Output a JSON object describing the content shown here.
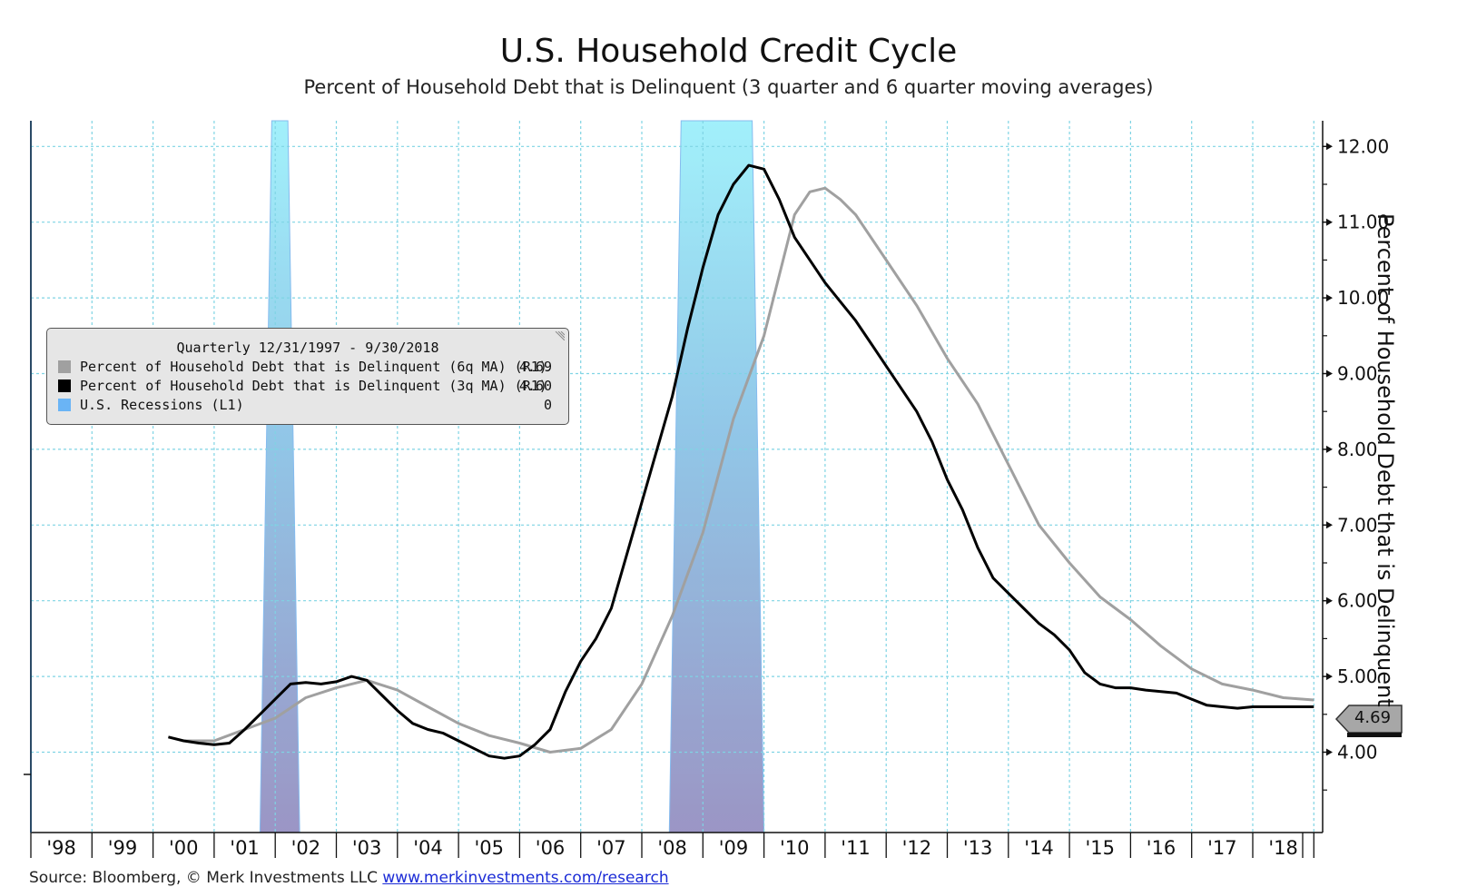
{
  "chart_data": {
    "type": "line",
    "title": "U.S. Household Credit Cycle",
    "subtitle": "Percent of Household Debt that is Delinquent (3 quarter and 6 quarter moving averages)",
    "ylabel": "Percent of Household Debt that is Delinquent",
    "ylim": [
      3.1,
      12.5
    ],
    "yticks": [
      "12.00",
      "11.00",
      "10.00",
      "9.00",
      "8.00",
      "7.00",
      "6.00",
      "5.00",
      "4.00"
    ],
    "xticks": [
      "'98",
      "'99",
      "'00",
      "'01",
      "'02",
      "'03",
      "'04",
      "'05",
      "'06",
      "'07",
      "'08",
      "'09",
      "'10",
      "'11",
      "'12",
      "'13",
      "'14",
      "'15",
      "'16",
      "'17",
      "'18"
    ],
    "xlim": [
      1997.5,
      2019.0
    ],
    "grid": true,
    "legend_position": "top-left",
    "recessions": [
      {
        "start": 2001.25,
        "end": 2001.9
      },
      {
        "start": 2007.95,
        "end": 2009.5
      }
    ],
    "series": [
      {
        "name": "Percent of Household Debt that is Delinquent (6q MA) (R1)",
        "color": "#a0a0a0",
        "last_value": "4.69",
        "x": [
          2000.0,
          2000.5,
          2001.0,
          2001.5,
          2002.0,
          2002.5,
          2003.0,
          2003.5,
          2004.0,
          2004.5,
          2005.0,
          2005.5,
          2006.0,
          2006.5,
          2007.0,
          2007.5,
          2008.0,
          2008.5,
          2009.0,
          2009.5,
          2010.0,
          2010.25,
          2010.5,
          2010.75,
          2011.0,
          2011.5,
          2012.0,
          2012.5,
          2013.0,
          2013.5,
          2014.0,
          2014.5,
          2015.0,
          2015.5,
          2016.0,
          2016.5,
          2017.0,
          2017.5,
          2018.0,
          2018.5
        ],
        "values": [
          4.15,
          4.15,
          4.3,
          4.45,
          4.72,
          4.85,
          4.95,
          4.82,
          4.6,
          4.38,
          4.22,
          4.12,
          4.0,
          4.05,
          4.3,
          4.9,
          5.8,
          6.9,
          8.4,
          9.5,
          11.1,
          11.4,
          11.45,
          11.3,
          11.1,
          10.5,
          9.9,
          9.2,
          8.6,
          7.8,
          7.0,
          6.5,
          6.05,
          5.75,
          5.4,
          5.1,
          4.9,
          4.82,
          4.72,
          4.69
        ]
      },
      {
        "name": "Percent of Household Debt that is Delinquent (3q MA) (R1)",
        "color": "#000000",
        "last_value": "4.60",
        "x": [
          1999.75,
          2000.0,
          2000.25,
          2000.5,
          2000.75,
          2001.0,
          2001.25,
          2001.5,
          2001.75,
          2002.0,
          2002.25,
          2002.5,
          2002.75,
          2003.0,
          2003.25,
          2003.5,
          2003.75,
          2004.0,
          2004.25,
          2004.5,
          2004.75,
          2005.0,
          2005.25,
          2005.5,
          2005.75,
          2006.0,
          2006.25,
          2006.5,
          2006.75,
          2007.0,
          2007.25,
          2007.5,
          2007.75,
          2008.0,
          2008.25,
          2008.5,
          2008.75,
          2009.0,
          2009.25,
          2009.5,
          2009.75,
          2010.0,
          2010.25,
          2010.5,
          2010.75,
          2011.0,
          2011.25,
          2011.5,
          2011.75,
          2012.0,
          2012.25,
          2012.5,
          2012.75,
          2013.0,
          2013.25,
          2013.5,
          2013.75,
          2014.0,
          2014.25,
          2014.5,
          2014.75,
          2015.0,
          2015.25,
          2015.5,
          2015.75,
          2016.0,
          2016.25,
          2016.5,
          2016.75,
          2017.0,
          2017.25,
          2017.5,
          2017.75,
          2018.0,
          2018.25,
          2018.5
        ],
        "values": [
          4.2,
          4.15,
          4.12,
          4.1,
          4.12,
          4.3,
          4.5,
          4.7,
          4.9,
          4.92,
          4.9,
          4.93,
          5.0,
          4.95,
          4.75,
          4.55,
          4.38,
          4.3,
          4.25,
          4.15,
          4.05,
          3.95,
          3.92,
          3.95,
          4.1,
          4.3,
          4.8,
          5.2,
          5.5,
          5.9,
          6.6,
          7.3,
          8.0,
          8.7,
          9.6,
          10.4,
          11.1,
          11.5,
          11.75,
          11.7,
          11.3,
          10.8,
          10.5,
          10.2,
          9.95,
          9.7,
          9.4,
          9.1,
          8.8,
          8.5,
          8.1,
          7.6,
          7.2,
          6.7,
          6.3,
          6.1,
          5.9,
          5.7,
          5.55,
          5.35,
          5.05,
          4.9,
          4.85,
          4.85,
          4.82,
          4.8,
          4.78,
          4.7,
          4.62,
          4.6,
          4.58,
          4.6,
          4.6,
          4.6,
          4.6,
          4.6
        ]
      },
      {
        "name": "U.S. Recessions (L1)",
        "color": "#6ab4f5",
        "last_value": "0"
      }
    ]
  },
  "legend": {
    "title": "Quarterly 12/31/1997 - 9/30/2018",
    "entries": [
      {
        "label": "Percent of Household Debt that is Delinquent (6q MA) (R1)",
        "value": "4.69",
        "color": "#a0a0a0"
      },
      {
        "label": "Percent of Household Debt that is Delinquent (3q MA) (R1)",
        "value": "4.60",
        "color": "#000000"
      },
      {
        "label": "U.S. Recessions (L1)",
        "value": "0",
        "color": "#6ab4f5"
      }
    ]
  },
  "last_value_tag": "4.69",
  "source": {
    "text": "Source: Bloomberg, © Merk Investments LLC",
    "link": "www.merkinvestments.com/research"
  }
}
